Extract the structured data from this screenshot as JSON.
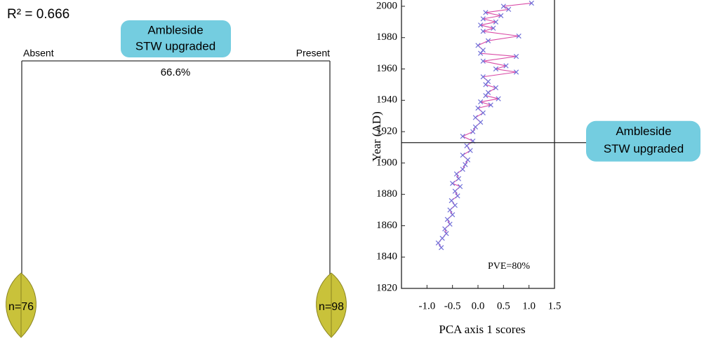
{
  "tree": {
    "title": "R² = 0.666",
    "root": {
      "lines": [
        "Ambleside",
        "STW upgraded"
      ],
      "split": "66.6%"
    },
    "branches": [
      {
        "label": "Absent",
        "leaf": "n=76"
      },
      {
        "label": "Present",
        "leaf": "n=98"
      }
    ]
  },
  "chart_data": {
    "type": "line",
    "x_label": "PCA axis 1 scores",
    "y_label": "Year (AD)",
    "xlim": [
      -1.5,
      1.5
    ],
    "xticks": [
      {
        "value": -1,
        "label": "-1.0"
      },
      {
        "value": -0.5,
        "label": "-0.5"
      },
      {
        "value": 0,
        "label": "0.0"
      },
      {
        "value": 0.5,
        "label": "0.5"
      },
      {
        "value": 1,
        "label": "1.0"
      },
      {
        "value": 1.5,
        "label": "1.5"
      }
    ],
    "ylim": [
      1820,
      2004
    ],
    "yticks": [
      1820,
      1840,
      1860,
      1880,
      1900,
      1920,
      1940,
      1960,
      1980,
      2000
    ],
    "series": [
      {
        "line_color": "#d94aa6",
        "marker_color": "#6f6fd8",
        "x": [
          -0.72,
          -0.78,
          -0.7,
          -0.62,
          -0.65,
          -0.55,
          -0.6,
          -0.5,
          -0.55,
          -0.45,
          -0.52,
          -0.4,
          -0.45,
          -0.35,
          -0.5,
          -0.38,
          -0.42,
          -0.3,
          -0.25,
          -0.2,
          -0.3,
          -0.15,
          -0.22,
          -0.1,
          -0.3,
          -0.1,
          -0.05,
          0.05,
          -0.05,
          0.1,
          0.0,
          0.25,
          0.05,
          0.4,
          0.15,
          0.2,
          0.35,
          0.15,
          0.2,
          0.1,
          0.75,
          0.35,
          0.55,
          0.1,
          0.75,
          0.05,
          0.1,
          0.0,
          0.2,
          0.8,
          0.1,
          0.3,
          0.05,
          0.35,
          0.1,
          0.45,
          0.15,
          0.6,
          0.5,
          1.05
        ],
        "values": [
          1846,
          1849,
          1852,
          1855,
          1858,
          1861,
          1864,
          1867,
          1870,
          1873,
          1876,
          1879,
          1882,
          1885,
          1887,
          1890,
          1893,
          1896,
          1899,
          1902,
          1905,
          1908,
          1911,
          1914,
          1917,
          1920,
          1923,
          1926,
          1929,
          1932,
          1935,
          1937,
          1939,
          1941,
          1943,
          1945,
          1948,
          1950,
          1952,
          1955,
          1958,
          1960,
          1962,
          1965,
          1968,
          1970,
          1972,
          1975,
          1978,
          1981,
          1984,
          1986,
          1988,
          1990,
          1992,
          1994,
          1996,
          1998,
          2000,
          2002
        ]
      }
    ],
    "annotation": {
      "lines": [
        "Ambleside",
        "STW upgraded"
      ],
      "y": 1913
    },
    "note": "PVE=80%"
  }
}
